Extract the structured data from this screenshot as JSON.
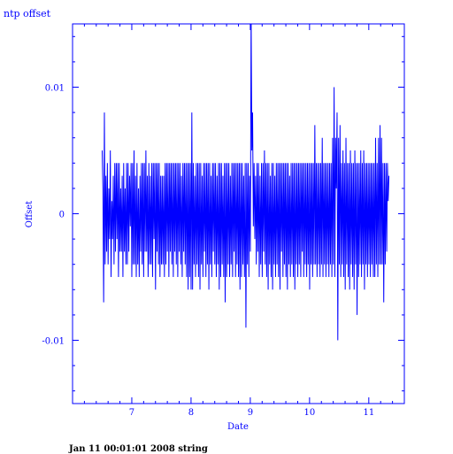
{
  "chart_data": {
    "type": "line",
    "title": "ntp offset",
    "xlabel": "Date",
    "ylabel": "Offset",
    "xlim": [
      6.0,
      11.6
    ],
    "ylim": [
      -0.015,
      0.015
    ],
    "x_ticks": [
      7,
      8,
      9,
      10,
      11
    ],
    "y_ticks": [
      -0.01,
      0,
      0.01
    ],
    "x_tick_labels": [
      "7",
      "8",
      "9",
      "10",
      "11"
    ],
    "y_tick_labels": [
      "-0.01",
      "0",
      "0.01"
    ],
    "grid": false,
    "color": "#0000ff",
    "series": [
      {
        "x_start": 6.5,
        "x_end": 11.34,
        "values": [
          0.005,
          0.002,
          -0.007,
          0.008,
          -0.004,
          0.003,
          -0.003,
          0.004,
          -0.004,
          0.002,
          -0.002,
          0.005,
          -0.005,
          0.001,
          -0.002,
          0.003,
          -0.004,
          0.004,
          -0.003,
          0.004,
          -0.002,
          0.004,
          -0.005,
          0.004,
          -0.003,
          0.002,
          -0.003,
          0.003,
          -0.005,
          0.004,
          -0.003,
          0.002,
          -0.004,
          0.004,
          -0.004,
          0.004,
          -0.003,
          0.003,
          -0.001,
          0.004,
          -0.005,
          0.004,
          -0.004,
          0.005,
          -0.004,
          0.003,
          -0.005,
          0.004,
          -0.004,
          0.002,
          -0.005,
          0.003,
          -0.003,
          0.004,
          -0.004,
          0.004,
          -0.005,
          0.004,
          -0.003,
          0.005,
          -0.003,
          0.003,
          -0.005,
          0.004,
          -0.004,
          0.003,
          -0.004,
          0.004,
          -0.005,
          0.004,
          -0.002,
          0.004,
          -0.006,
          0.004,
          -0.003,
          0.004,
          -0.004,
          0.004,
          -0.005,
          0.003,
          -0.004,
          0.003,
          -0.004,
          0.003,
          -0.005,
          0.004,
          -0.004,
          0.004,
          -0.003,
          0.004,
          -0.005,
          0.004,
          -0.003,
          0.004,
          -0.004,
          0.004,
          -0.005,
          0.004,
          -0.003,
          0.004,
          -0.004,
          0.004,
          -0.005,
          0.004,
          -0.003,
          0.004,
          -0.004,
          0.003,
          -0.005,
          0.004,
          -0.003,
          0.004,
          -0.004,
          0.004,
          -0.005,
          0.004,
          -0.006,
          0.004,
          -0.005,
          0.004,
          -0.006,
          0.008,
          -0.006,
          0.004,
          -0.004,
          0.003,
          -0.005,
          0.004,
          -0.004,
          0.004,
          -0.005,
          0.004,
          -0.006,
          0.004,
          -0.004,
          0.003,
          -0.005,
          0.004,
          -0.003,
          0.004,
          -0.005,
          0.004,
          -0.004,
          0.004,
          -0.006,
          0.004,
          -0.004,
          0.003,
          -0.005,
          0.004,
          -0.003,
          0.004,
          -0.004,
          0.004,
          -0.005,
          0.003,
          -0.004,
          0.004,
          -0.006,
          0.004,
          -0.005,
          0.004,
          -0.004,
          0.003,
          -0.005,
          0.004,
          -0.007,
          0.004,
          -0.005,
          0.004,
          -0.004,
          0.004,
          -0.005,
          0.003,
          -0.004,
          0.004,
          -0.005,
          0.004,
          -0.003,
          0.004,
          -0.005,
          0.004,
          -0.004,
          0.004,
          -0.005,
          0.004,
          -0.006,
          0.004,
          -0.005,
          0.004,
          -0.004,
          0.003,
          -0.005,
          0.004,
          -0.009,
          0.004,
          -0.004,
          0.004,
          -0.005,
          0.003,
          -0.003,
          0.016,
          0.005,
          0.008,
          -0.001,
          0.004,
          -0.002,
          0.003,
          -0.004,
          0.004,
          -0.003,
          0.004,
          -0.005,
          0.003,
          -0.004,
          0.004,
          -0.005,
          0.004,
          -0.003,
          0.005,
          -0.004,
          0.004,
          -0.005,
          0.004,
          -0.006,
          0.004,
          -0.004,
          0.003,
          -0.005,
          0.004,
          -0.006,
          0.004,
          -0.004,
          0.003,
          -0.005,
          0.004,
          -0.004,
          0.004,
          -0.005,
          0.004,
          -0.006,
          0.004,
          -0.003,
          0.004,
          -0.005,
          0.004,
          -0.004,
          0.004,
          -0.005,
          0.004,
          -0.006,
          0.004,
          -0.004,
          0.003,
          -0.005,
          0.004,
          -0.004,
          0.004,
          -0.005,
          0.004,
          -0.006,
          0.004,
          -0.004,
          0.004,
          -0.005,
          0.004,
          -0.004,
          0.004,
          -0.005,
          0.004,
          -0.003,
          0.004,
          -0.005,
          0.004,
          -0.004,
          0.004,
          -0.005,
          0.004,
          -0.004,
          0.004,
          -0.006,
          0.004,
          -0.004,
          0.004,
          -0.005,
          0.004,
          -0.004,
          0.007,
          -0.004,
          0.004,
          -0.005,
          0.004,
          -0.004,
          0.004,
          -0.005,
          0.004,
          -0.004,
          0.006,
          -0.005,
          0.004,
          -0.004,
          0.004,
          -0.005,
          0.004,
          -0.004,
          0.004,
          -0.005,
          0.004,
          -0.004,
          0.004,
          -0.005,
          0.006,
          -0.004,
          0.01,
          -0.005,
          0.006,
          0.002,
          0.008,
          -0.01,
          0.006,
          -0.004,
          0.007,
          -0.005,
          0.004,
          -0.004,
          0.005,
          -0.005,
          0.004,
          -0.006,
          0.006,
          -0.004,
          0.004,
          -0.005,
          0.004,
          -0.006,
          0.005,
          -0.004,
          0.004,
          -0.005,
          0.004,
          -0.006,
          0.005,
          -0.004,
          0.004,
          -0.008,
          0.004,
          -0.005,
          0.004,
          -0.004,
          0.005,
          -0.005,
          0.004,
          -0.004,
          0.005,
          -0.006,
          0.004,
          -0.004,
          0.004,
          -0.005,
          0.004,
          -0.004,
          0.004,
          -0.005,
          0.004,
          -0.004,
          0.004,
          -0.005,
          0.004,
          -0.005,
          0.006,
          -0.004,
          0.004,
          -0.005,
          0.006,
          -0.004,
          0.007,
          -0.004,
          0.006,
          -0.004,
          0.004,
          -0.007,
          0.004,
          -0.004,
          0.004,
          -0.003,
          0.004,
          0.001,
          0.003
        ]
      }
    ]
  },
  "footer": "Jan 11 00:01:01 2008 string"
}
